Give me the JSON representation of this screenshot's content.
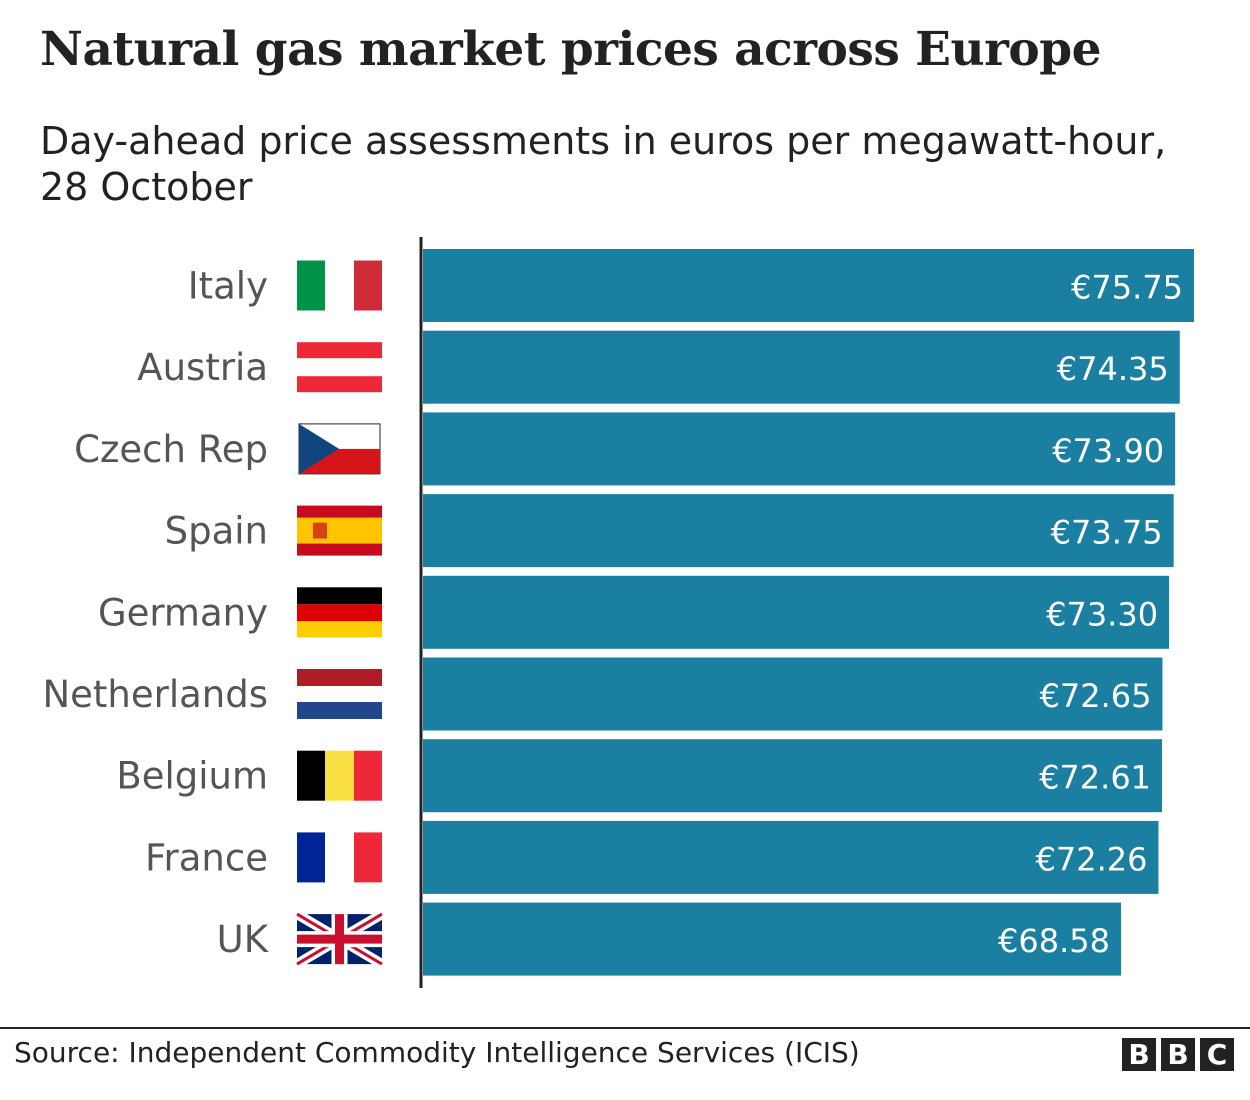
{
  "chart_data": {
    "type": "bar",
    "orientation": "horizontal",
    "title": "Natural gas market prices across Europe",
    "subtitle": "Day-ahead price assessments in euros per megawatt-hour, 28 October",
    "categories": [
      "Italy",
      "Austria",
      "Czech Rep",
      "Spain",
      "Germany",
      "Netherlands",
      "Belgium",
      "France",
      "UK"
    ],
    "values": [
      75.75,
      74.35,
      73.9,
      73.75,
      73.3,
      72.65,
      72.61,
      72.26,
      68.58
    ],
    "data_labels": [
      "€75.75",
      "€74.35",
      "€73.90",
      "€73.75",
      "€73.30",
      "€72.65",
      "€72.61",
      "€72.26",
      "€68.58"
    ],
    "flag_icons": [
      "italy-flag-icon",
      "austria-flag-icon",
      "czech-flag-icon",
      "spain-flag-icon",
      "germany-flag-icon",
      "netherlands-flag-icon",
      "belgium-flag-icon",
      "france-flag-icon",
      "uk-flag-icon"
    ],
    "xlim": [
      0,
      75.75
    ],
    "grid": false,
    "bar_color": "#1a7fa0"
  },
  "footer": {
    "source": "Source: Independent Commodity Intelligence Services (ICIS)",
    "logo": [
      "B",
      "B",
      "C"
    ]
  }
}
